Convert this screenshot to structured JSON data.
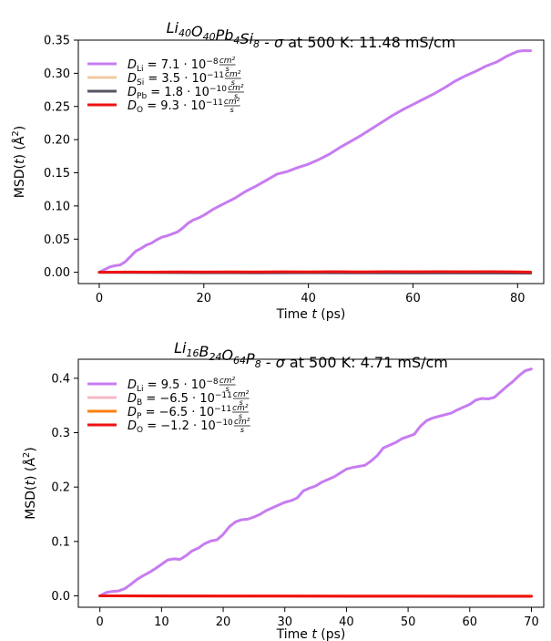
{
  "chart_data": [
    {
      "type": "line",
      "title": "Li40O40Pb4Si8 - σ at 500 K: 11.48 mS/cm",
      "title_parts": [
        {
          "t": "Li",
          "i": true
        },
        {
          "t": "40",
          "sub": true,
          "i": true
        },
        {
          "t": "O",
          "i": true
        },
        {
          "t": "40",
          "sub": true,
          "i": true
        },
        {
          "t": "Pb",
          "i": true
        },
        {
          "t": "4",
          "sub": true,
          "i": true
        },
        {
          "t": "Si",
          "i": true
        },
        {
          "t": "8",
          "sub": true,
          "i": true
        },
        {
          "t": " - "
        },
        {
          "t": "σ",
          "i": true
        },
        {
          "t": " at 500 K: 11.48 mS/cm"
        }
      ],
      "xlabel": "Time t (ps)",
      "ylabel": "MSD(t) (Å²)",
      "xlim": [
        -4,
        85
      ],
      "ylim": [
        -0.017,
        0.35
      ],
      "xticks": [
        0,
        20,
        40,
        60,
        80
      ],
      "xtick_labels": [
        "0",
        "20",
        "40",
        "60",
        "80"
      ],
      "yticks": [
        0.0,
        0.05,
        0.1,
        0.15,
        0.2,
        0.25,
        0.3,
        0.35
      ],
      "ytick_labels": [
        "0.00",
        "0.05",
        "0.10",
        "0.15",
        "0.20",
        "0.25",
        "0.30",
        "0.35"
      ],
      "grid": false,
      "legend_position": "upper-left",
      "series": [
        {
          "species": "Li",
          "coef": "7.1",
          "exp": "−8",
          "color": "#c77cf0",
          "width": 3,
          "x": [
            0,
            1,
            2,
            3,
            4,
            5,
            6,
            7,
            8,
            9,
            10,
            11,
            12,
            13,
            14,
            15,
            16,
            17,
            18,
            19,
            20,
            22,
            24,
            26,
            28,
            30,
            32,
            34,
            36,
            38,
            40,
            42,
            44,
            46,
            48,
            50,
            52,
            54,
            56,
            58,
            60,
            62,
            64,
            66,
            68,
            70,
            72,
            74,
            76,
            78,
            80,
            81,
            82.5
          ],
          "y": [
            0,
            0.004,
            0.008,
            0.01,
            0.011,
            0.016,
            0.024,
            0.032,
            0.036,
            0.041,
            0.044,
            0.049,
            0.053,
            0.055,
            0.058,
            0.061,
            0.067,
            0.074,
            0.079,
            0.082,
            0.086,
            0.096,
            0.104,
            0.112,
            0.122,
            0.13,
            0.139,
            0.148,
            0.152,
            0.158,
            0.163,
            0.17,
            0.178,
            0.188,
            0.197,
            0.206,
            0.216,
            0.226,
            0.236,
            0.245,
            0.253,
            0.261,
            0.269,
            0.278,
            0.288,
            0.296,
            0.303,
            0.311,
            0.317,
            0.326,
            0.333,
            0.334,
            0.334
          ]
        },
        {
          "species": "Si",
          "coef": "3.5",
          "exp": "−11",
          "color": "#f0c9a0",
          "width": 3,
          "x": [
            0,
            10,
            20,
            30,
            40,
            50,
            60,
            70,
            80,
            82.5
          ],
          "y": [
            0,
            0.0005,
            0.0006,
            0.0007,
            0.0007,
            0.0008,
            0.0009,
            0.001,
            0.0008,
            0.0006
          ]
        },
        {
          "species": "Pb",
          "coef": "1.8",
          "exp": "−10",
          "color": "#555566",
          "width": 3,
          "x": [
            0,
            10,
            20,
            30,
            40,
            50,
            60,
            70,
            80,
            82.5
          ],
          "y": [
            0,
            -0.0004,
            -0.0006,
            -0.0008,
            -0.0007,
            -0.0009,
            -0.001,
            -0.0011,
            -0.0012,
            -0.0014
          ]
        },
        {
          "species": "O",
          "coef": "9.3",
          "exp": "−11",
          "color": "#ee1111",
          "width": 3,
          "x": [
            0,
            5,
            10,
            15,
            20,
            25,
            30,
            35,
            40,
            45,
            50,
            55,
            60,
            65,
            70,
            75,
            80,
            82.5
          ],
          "y": [
            0,
            0.0003,
            0.0002,
            0.0005,
            0.0003,
            0.0006,
            0.0004,
            0.0007,
            0.0005,
            0.0008,
            0.0006,
            0.0008,
            0.0007,
            0.0009,
            0.0007,
            0.0008,
            0.0006,
            0.0002
          ]
        }
      ]
    },
    {
      "type": "line",
      "title": "Li16B24O64P8 - σ at 500 K: 4.71 mS/cm",
      "title_parts": [
        {
          "t": "Li",
          "i": true
        },
        {
          "t": "16",
          "sub": true,
          "i": true
        },
        {
          "t": "B",
          "i": true
        },
        {
          "t": "24",
          "sub": true,
          "i": true
        },
        {
          "t": "O",
          "i": true
        },
        {
          "t": "64",
          "sub": true,
          "i": true
        },
        {
          "t": "P",
          "i": true
        },
        {
          "t": "8",
          "sub": true,
          "i": true
        },
        {
          "t": " - "
        },
        {
          "t": "σ",
          "i": true
        },
        {
          "t": " at 500 K: 4.71 mS/cm"
        }
      ],
      "xlabel": "Time t (ps)",
      "ylabel": "MSD(t) (Å²)",
      "xlim": [
        -3.5,
        72
      ],
      "ylim": [
        -0.021,
        0.435
      ],
      "xticks": [
        0,
        10,
        20,
        30,
        40,
        50,
        60,
        70
      ],
      "xtick_labels": [
        "0",
        "10",
        "20",
        "30",
        "40",
        "50",
        "60",
        "70"
      ],
      "yticks": [
        0.0,
        0.1,
        0.2,
        0.3,
        0.4
      ],
      "ytick_labels": [
        "0.0",
        "0.1",
        "0.2",
        "0.3",
        "0.4"
      ],
      "grid": false,
      "legend_position": "upper-left",
      "series": [
        {
          "species": "Li",
          "coef": "9.5",
          "exp": "−8",
          "color": "#c77cf0",
          "width": 3,
          "x": [
            0,
            1,
            2,
            3,
            4,
            5,
            6,
            7,
            8,
            9,
            10,
            11,
            12,
            13,
            14,
            15,
            16,
            17,
            18,
            19,
            20,
            21,
            22,
            23,
            24,
            25,
            26,
            27,
            28,
            29,
            30,
            31,
            32,
            33,
            34,
            35,
            36,
            37,
            38,
            39,
            40,
            41,
            42,
            43,
            44,
            45,
            46,
            47,
            48,
            49,
            50,
            51,
            52,
            53,
            54,
            55,
            56,
            57,
            58,
            59,
            60,
            61,
            62,
            63,
            64,
            65,
            66,
            67,
            68,
            69,
            70
          ],
          "y": [
            0,
            0.006,
            0.008,
            0.009,
            0.013,
            0.021,
            0.03,
            0.037,
            0.043,
            0.05,
            0.058,
            0.066,
            0.068,
            0.067,
            0.074,
            0.083,
            0.088,
            0.096,
            0.101,
            0.103,
            0.113,
            0.127,
            0.136,
            0.14,
            0.141,
            0.145,
            0.15,
            0.157,
            0.162,
            0.167,
            0.172,
            0.175,
            0.18,
            0.193,
            0.198,
            0.202,
            0.209,
            0.214,
            0.219,
            0.226,
            0.233,
            0.236,
            0.238,
            0.24,
            0.248,
            0.258,
            0.272,
            0.277,
            0.282,
            0.289,
            0.293,
            0.297,
            0.312,
            0.322,
            0.327,
            0.33,
            0.333,
            0.336,
            0.342,
            0.347,
            0.352,
            0.36,
            0.363,
            0.362,
            0.365,
            0.375,
            0.385,
            0.394,
            0.405,
            0.414,
            0.417
          ]
        },
        {
          "species": "B",
          "coef": "−6.5",
          "exp": "−11",
          "color": "#f5b8c4",
          "width": 3,
          "x": [
            0,
            10,
            20,
            30,
            40,
            50,
            60,
            70
          ],
          "y": [
            0,
            -0.0002,
            -0.0003,
            -0.0004,
            -0.0004,
            -0.0005,
            -0.0005,
            -0.0006
          ]
        },
        {
          "species": "P",
          "coef": "−6.5",
          "exp": "−11",
          "color": "#ff7f0e",
          "width": 3,
          "x": [
            0,
            10,
            20,
            30,
            40,
            50,
            60,
            70
          ],
          "y": [
            0,
            -0.0002,
            -0.0003,
            -0.0003,
            -0.0004,
            -0.0004,
            -0.0005,
            -0.0005
          ]
        },
        {
          "species": "O",
          "coef": "−1.2",
          "exp": "−10",
          "color": "#ee1111",
          "width": 3,
          "x": [
            0,
            10,
            20,
            30,
            40,
            50,
            60,
            70
          ],
          "y": [
            0,
            -0.0003,
            -0.0004,
            -0.0005,
            -0.0006,
            -0.0007,
            -0.0008,
            -0.0009
          ]
        }
      ]
    }
  ]
}
